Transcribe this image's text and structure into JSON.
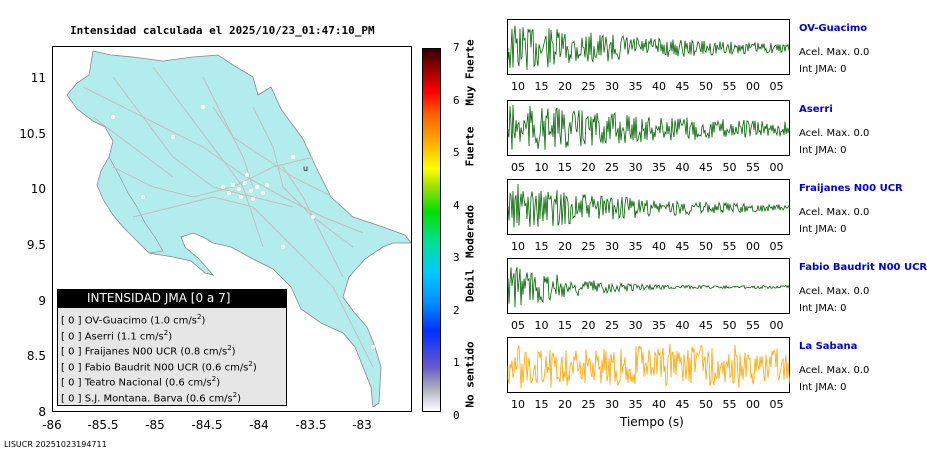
{
  "map": {
    "title": "Intensidad calculada el 2025/10/23_01:47:10_PM",
    "y_ticks": [
      "11",
      "10.5",
      "10",
      "9.5",
      "9",
      "8.5",
      "8"
    ],
    "x_ticks": [
      "-86",
      "-85.5",
      "-85",
      "-84.5",
      "-84",
      "-83.5",
      "-83"
    ],
    "marker_label": "u",
    "land_color": "#b3ecec",
    "road_color": "#bfbfbf"
  },
  "legend": {
    "header": "INTENSIDAD JMA [0 a 7]",
    "items": [
      {
        "level": "[ 0 ]",
        "station": "OV-Guacimo",
        "value": "(1.0 cm/s",
        "sup": "2",
        "close": ")"
      },
      {
        "level": "[ 0 ]",
        "station": "Aserri",
        "value": "(1.1 cm/s",
        "sup": "2",
        "close": ")"
      },
      {
        "level": "[ 0 ]",
        "station": "Fraijanes N00 UCR",
        "value": "(0.8 cm/s",
        "sup": "2",
        "close": ")"
      },
      {
        "level": "[ 0 ]",
        "station": "Fabio Baudrit N00 UCR",
        "value": "(0.6 cm/s",
        "sup": "2",
        "close": ")"
      },
      {
        "level": "[ 0 ]",
        "station": "Teatro Nacional",
        "value": "(0.6 cm/s",
        "sup": "2",
        "close": ")"
      },
      {
        "level": "[ 0 ]",
        "station": "S.J. Montana. Barva",
        "value": "(0.6 cm/s",
        "sup": "2",
        "close": ")"
      }
    ]
  },
  "colorbar": {
    "ticks": [
      "7",
      "6",
      "5",
      "4",
      "3",
      "2",
      "1",
      "0"
    ],
    "labels": [
      "Muy Fuerte",
      "Fuerte",
      "Moderado",
      "Debil",
      "No sentido"
    ]
  },
  "stations": [
    {
      "name": "OV-Guacimo",
      "accel": "Acel. Max. 0.0",
      "jma": "Int JMA: 0",
      "color": "#006400",
      "ticks": [
        "10",
        "15",
        "20",
        "25",
        "30",
        "35",
        "40",
        "45",
        "50",
        "55",
        "00",
        "05"
      ]
    },
    {
      "name": "Aserri",
      "accel": "Acel. Max. 0.0",
      "jma": "Int JMA: 0",
      "color": "#006400",
      "ticks": [
        "05",
        "10",
        "15",
        "20",
        "25",
        "30",
        "35",
        "40",
        "45",
        "50",
        "55",
        "00"
      ]
    },
    {
      "name": "Fraijanes N00 UCR",
      "accel": "Acel. Max. 0.0",
      "jma": "Int JMA: 0",
      "color": "#006400",
      "ticks": [
        "10",
        "15",
        "20",
        "25",
        "30",
        "35",
        "40",
        "45",
        "50",
        "55",
        "00",
        "05"
      ]
    },
    {
      "name": "Fabio Baudrit N00 UCR",
      "accel": "Acel. Max. 0.0",
      "jma": "Int JMA: 0",
      "color": "#006400",
      "ticks": [
        "05",
        "10",
        "15",
        "20",
        "25",
        "30",
        "35",
        "40",
        "45",
        "50",
        "55",
        "00"
      ]
    },
    {
      "name": "La Sabana",
      "accel": "Acel. Max. 0.0",
      "jma": "Int JMA: 0",
      "color": "#ffa500",
      "ticks": [
        "10",
        "15",
        "20",
        "25",
        "30",
        "35",
        "40",
        "45",
        "50",
        "55",
        "00",
        "05"
      ]
    }
  ],
  "time_label": "Tiempo (s)",
  "footer": "LISUCR 20251023194711"
}
